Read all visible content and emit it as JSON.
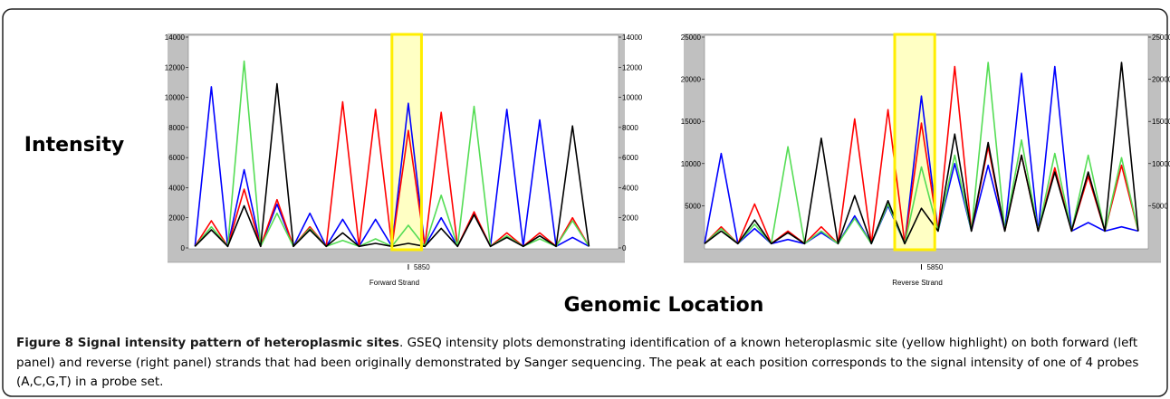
{
  "figure": {
    "ylabel": "Intensity",
    "xlabel": "Genomic Location",
    "caption_label": "Figure 8 Signal intensity pattern of heteroplasmic sites",
    "caption_text": ". GSEQ intensity plots demonstrating identification of a known heteroplasmic site (yellow highlight) on both forward (left panel) and reverse (right panel) strands that had been originally demonstrated by Sanger sequencing. The peak at each position corresponds to the signal intensity of one of 4 probes (A,C,G,T) in a probe set."
  },
  "chart_data": [
    {
      "type": "line",
      "xlabel": "Forward Strand",
      "x": [
        5843.5,
        5844,
        5844.5,
        5845,
        5845.5,
        5846,
        5846.5,
        5847,
        5847.5,
        5848,
        5848.5,
        5849,
        5849.5,
        5850,
        5850.5,
        5851,
        5851.5,
        5852,
        5852.5,
        5853,
        5853.5,
        5854,
        5854.5,
        5855,
        5855.5
      ],
      "xlim": [
        5843.3,
        5856.4
      ],
      "xticks": [
        5850
      ],
      "ylim": [
        0,
        14000
      ],
      "yticks": [
        0,
        2000,
        4000,
        6000,
        8000,
        10000,
        12000,
        14000
      ],
      "highlight": [
        5849.5,
        5850.4
      ],
      "series": [
        {
          "color": "#0000ff",
          "values": [
            100,
            10700,
            100,
            5200,
            100,
            2900,
            100,
            2300,
            100,
            1900,
            100,
            1900,
            100,
            9600,
            100,
            2000,
            100,
            2300,
            100,
            9200,
            100,
            8500,
            100,
            700,
            100
          ]
        },
        {
          "color": "#ff0000",
          "values": [
            100,
            1800,
            100,
            3900,
            100,
            3200,
            100,
            1400,
            100,
            9700,
            100,
            9200,
            100,
            7800,
            100,
            9000,
            100,
            2400,
            100,
            1000,
            100,
            1000,
            100,
            2000,
            100
          ]
        },
        {
          "color": "#55dd55",
          "values": [
            100,
            1400,
            100,
            12400,
            100,
            2300,
            100,
            1300,
            100,
            500,
            100,
            600,
            100,
            1500,
            100,
            3500,
            100,
            9400,
            100,
            800,
            100,
            600,
            100,
            1800,
            100
          ]
        },
        {
          "color": "#000000",
          "values": [
            100,
            1200,
            100,
            2800,
            100,
            10900,
            100,
            1200,
            100,
            1000,
            100,
            300,
            100,
            300,
            100,
            1300,
            100,
            2200,
            100,
            700,
            100,
            800,
            100,
            8100,
            100
          ]
        }
      ]
    },
    {
      "type": "line",
      "xlabel": "Reverse Strand",
      "x": [
        5843.5,
        5844,
        5844.5,
        5845,
        5845.5,
        5846,
        5846.5,
        5847,
        5847.5,
        5848,
        5848.5,
        5849,
        5849.5,
        5850,
        5850.5,
        5851,
        5851.5,
        5852,
        5852.5,
        5853,
        5853.5,
        5854,
        5854.5,
        5855,
        5855.5,
        5856,
        5856.5
      ],
      "xlim": [
        5843.5,
        5856.8
      ],
      "xticks": [
        5850
      ],
      "ylim": [
        0,
        25000
      ],
      "yticks": [
        5000,
        10000,
        15000,
        20000,
        25000
      ],
      "highlight": [
        5849.2,
        5850.4
      ],
      "series": [
        {
          "color": "#0000ff",
          "values": [
            500,
            11200,
            500,
            2300,
            500,
            1000,
            500,
            1800,
            500,
            3800,
            500,
            5000,
            500,
            18000,
            2000,
            10000,
            2000,
            9800,
            2000,
            20700,
            2000,
            21500,
            2000,
            3000,
            2000,
            2500,
            2000
          ]
        },
        {
          "color": "#ff0000",
          "values": [
            500,
            2500,
            500,
            5200,
            500,
            2000,
            500,
            2500,
            500,
            15300,
            500,
            16400,
            500,
            14800,
            2000,
            21500,
            2000,
            12000,
            2000,
            11000,
            2000,
            9500,
            2000,
            8500,
            2000,
            9800,
            2000
          ]
        },
        {
          "color": "#55dd55",
          "values": [
            500,
            2300,
            500,
            2800,
            500,
            12000,
            500,
            2000,
            500,
            3500,
            500,
            5200,
            500,
            9600,
            2000,
            11000,
            2000,
            22000,
            2000,
            12800,
            2000,
            11200,
            2000,
            11000,
            2000,
            10700,
            2000
          ]
        },
        {
          "color": "#000000",
          "values": [
            500,
            2000,
            500,
            3300,
            500,
            1800,
            500,
            13000,
            500,
            6200,
            500,
            5600,
            500,
            4700,
            2000,
            13500,
            2000,
            12500,
            2000,
            11000,
            2000,
            9000,
            2000,
            9000,
            2000,
            22000,
            2000
          ]
        }
      ]
    }
  ]
}
